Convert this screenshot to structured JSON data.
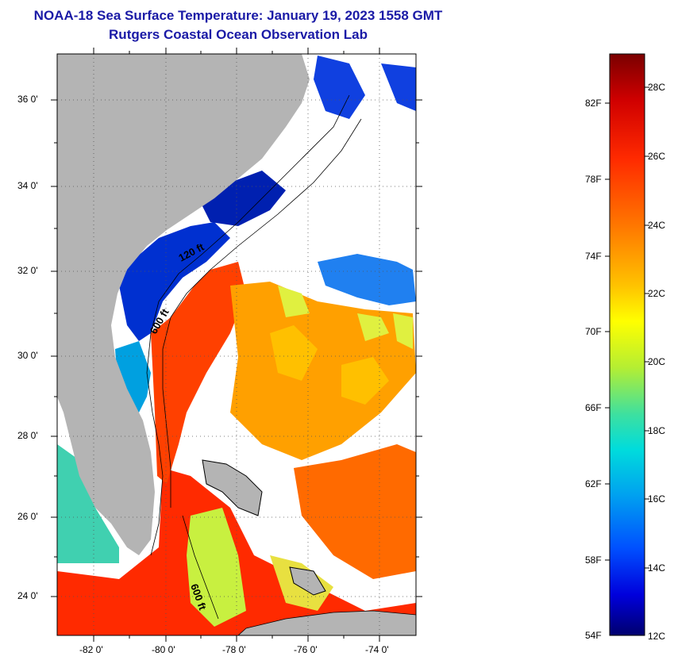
{
  "header": {
    "title": "NOAA-18 Sea Surface Temperature:  January 19, 2023 1558 GMT",
    "subtitle": "Rutgers Coastal Ocean Observation Lab"
  },
  "map": {
    "lat_labels": [
      "36 0'",
      "34 0'",
      "32 0'",
      "30 0'",
      "28 0'",
      "26 0'",
      "24 0'"
    ],
    "lon_labels": [
      "-82 0'",
      "-80 0'",
      "-78 0'",
      "-76 0'",
      "-74 0'"
    ],
    "contour_labels": [
      "120 ft",
      "600 ft",
      "600 ft"
    ],
    "colors": {
      "land": "#b4b4b4",
      "cloud": "#ffffff",
      "border": "#000000"
    }
  },
  "colorbar": {
    "f_labels": [
      "82F",
      "78F",
      "74F",
      "70F",
      "66F",
      "62F",
      "58F",
      "54F"
    ],
    "c_labels": [
      "28C",
      "26C",
      "24C",
      "22C",
      "20C",
      "18C",
      "16C",
      "14C",
      "12C"
    ],
    "gradient": [
      "#7a0000",
      "#d00000",
      "#ff2a00",
      "#ff7a00",
      "#ffc400",
      "#ffff00",
      "#b4ee33",
      "#3de0a0",
      "#00dcdc",
      "#00a0f0",
      "#0050ff",
      "#0000dc",
      "#00006e"
    ]
  }
}
